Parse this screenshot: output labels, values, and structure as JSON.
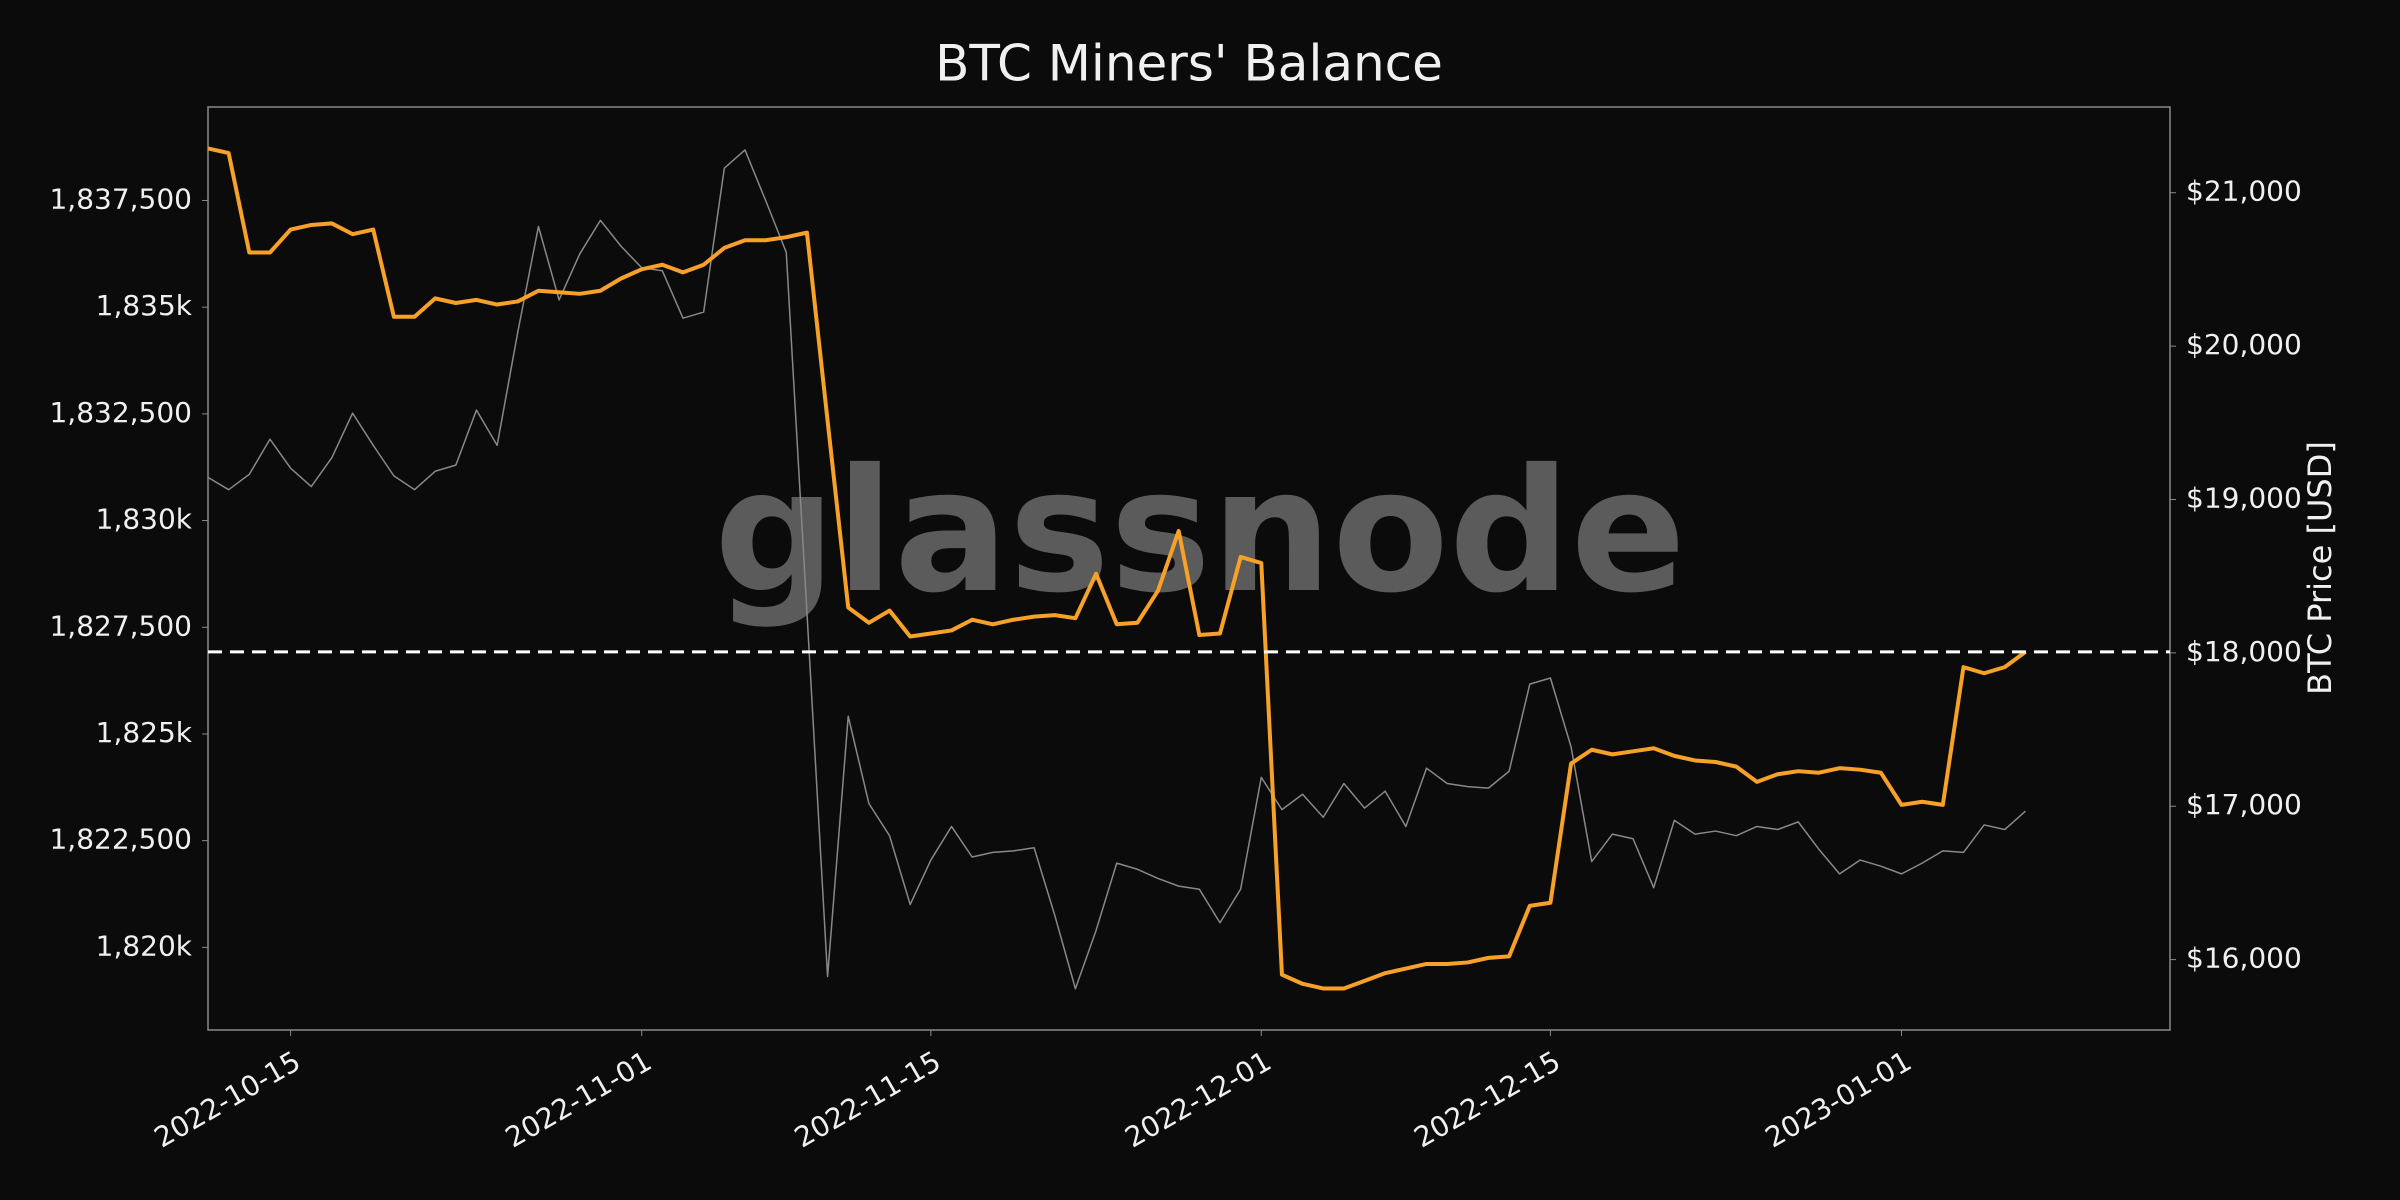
{
  "chart_data": {
    "type": "line",
    "title": "BTC Miners' Balance",
    "y2label": "BTC Price [USD]",
    "watermark": "glassnode",
    "background": "#0b0b0b",
    "x": [
      "2022-10-11",
      "2022-10-12",
      "2022-10-13",
      "2022-10-14",
      "2022-10-15",
      "2022-10-16",
      "2022-10-17",
      "2022-10-18",
      "2022-10-19",
      "2022-10-20",
      "2022-10-21",
      "2022-10-22",
      "2022-10-23",
      "2022-10-24",
      "2022-10-25",
      "2022-10-26",
      "2022-10-27",
      "2022-10-28",
      "2022-10-29",
      "2022-10-30",
      "2022-10-31",
      "2022-11-01",
      "2022-11-02",
      "2022-11-03",
      "2022-11-04",
      "2022-11-05",
      "2022-11-06",
      "2022-11-07",
      "2022-11-08",
      "2022-11-09",
      "2022-11-10",
      "2022-11-11",
      "2022-11-12",
      "2022-11-13",
      "2022-11-14",
      "2022-11-15",
      "2022-11-16",
      "2022-11-17",
      "2022-11-18",
      "2022-11-19",
      "2022-11-20",
      "2022-11-21",
      "2022-11-22",
      "2022-11-23",
      "2022-11-24",
      "2022-11-25",
      "2022-11-26",
      "2022-11-27",
      "2022-11-28",
      "2022-11-29",
      "2022-11-30",
      "2022-12-01",
      "2022-12-02",
      "2022-12-03",
      "2022-12-04",
      "2022-12-05",
      "2022-12-06",
      "2022-12-07",
      "2022-12-08",
      "2022-12-09",
      "2022-12-10",
      "2022-12-11",
      "2022-12-12",
      "2022-12-13",
      "2022-12-14",
      "2022-12-15",
      "2022-12-16",
      "2022-12-17",
      "2022-12-18",
      "2022-12-19",
      "2022-12-20",
      "2022-12-21",
      "2022-12-22",
      "2022-12-23",
      "2022-12-24",
      "2022-12-25",
      "2022-12-26",
      "2022-12-27",
      "2022-12-28",
      "2022-12-29",
      "2022-12-30",
      "2022-12-31",
      "2023-01-01",
      "2023-01-02",
      "2023-01-03",
      "2023-01-04",
      "2023-01-05",
      "2023-01-06",
      "2023-01-07"
    ],
    "xlim": [
      "2022-10-11",
      "2023-01-14"
    ],
    "xticks": [
      "2022-10-15",
      "2022-11-01",
      "2022-11-15",
      "2022-12-01",
      "2022-12-15",
      "2023-01-01"
    ],
    "ylim": [
      1818064,
      1839690
    ],
    "yticks": [
      {
        "value": 1820000,
        "label": "1,820k"
      },
      {
        "value": 1822500,
        "label": "1,822,500"
      },
      {
        "value": 1825000,
        "label": "1,825k"
      },
      {
        "value": 1827500,
        "label": "1,827,500"
      },
      {
        "value": 1830000,
        "label": "1,830k"
      },
      {
        "value": 1832500,
        "label": "1,832,500"
      },
      {
        "value": 1835000,
        "label": "1,835k"
      },
      {
        "value": 1837500,
        "label": "1,837,500"
      }
    ],
    "y2lim": [
      15541,
      21559
    ],
    "y2ticks": [
      {
        "value": 16000,
        "label": "$16,000"
      },
      {
        "value": 17000,
        "label": "$17,000"
      },
      {
        "value": 18000,
        "label": "$18,000"
      },
      {
        "value": 19000,
        "label": "$19,000"
      },
      {
        "value": 20000,
        "label": "$20,000"
      },
      {
        "value": 21000,
        "label": "$21,000"
      }
    ],
    "reference_line": 1826924,
    "series": [
      {
        "color": "#888888",
        "axis": "y2",
        "values": [
          19144,
          19064,
          19164,
          19393,
          19204,
          19084,
          19273,
          19563,
          19353,
          19154,
          19064,
          19184,
          19224,
          19583,
          19353,
          20092,
          20780,
          20301,
          20601,
          20820,
          20651,
          20511,
          20491,
          20182,
          20222,
          21160,
          21279,
          20950,
          20611,
          18265,
          15890,
          17587,
          17018,
          16808,
          16359,
          16649,
          16868,
          16669,
          16699,
          16709,
          16729,
          16289,
          15810,
          16190,
          16629,
          16589,
          16529,
          16479,
          16459,
          16240,
          16459,
          17188,
          16978,
          17078,
          16928,
          17148,
          16988,
          17098,
          16868,
          17248,
          17148,
          17128,
          17118,
          17228,
          17796,
          17836,
          17387,
          16639,
          16818,
          16788,
          16469,
          16908,
          16818,
          16838,
          16808,
          16868,
          16848,
          16898,
          16719,
          16559,
          16649,
          16609,
          16559,
          16629,
          16709,
          16699,
          16878,
          16848,
          16968
        ]
      },
      {
        "color": "#f7a128",
        "values": [
          1838719,
          1838611,
          1836281,
          1836281,
          1836819,
          1836926,
          1836962,
          1836711,
          1836819,
          1834775,
          1834775,
          1835206,
          1835098,
          1835170,
          1835062,
          1835134,
          1835385,
          1835349,
          1835313,
          1835385,
          1835672,
          1835887,
          1835994,
          1835815,
          1835994,
          1836389,
          1836568,
          1836568,
          1836640,
          1836747,
          1832338,
          1827964,
          1827605,
          1827892,
          1827283,
          1827354,
          1827426,
          1827677,
          1827570,
          1827677,
          1827749,
          1827785,
          1827713,
          1828753,
          1827570,
          1827605,
          1828358,
          1829756,
          1827319,
          1827354,
          1829147,
          1829004,
          1819360,
          1819145,
          1819037,
          1819037,
          1819216,
          1819396,
          1819503,
          1819611,
          1819611,
          1819647,
          1819754,
          1819790,
          1820973,
          1821045,
          1824307,
          1824630,
          1824522,
          1824594,
          1824666,
          1824487,
          1824379,
          1824343,
          1824235,
          1823877,
          1824056,
          1824128,
          1824092,
          1824199,
          1824163,
          1824092,
          1823339,
          1823411,
          1823339,
          1826566,
          1826423,
          1826566,
          1826924
        ]
      }
    ]
  }
}
